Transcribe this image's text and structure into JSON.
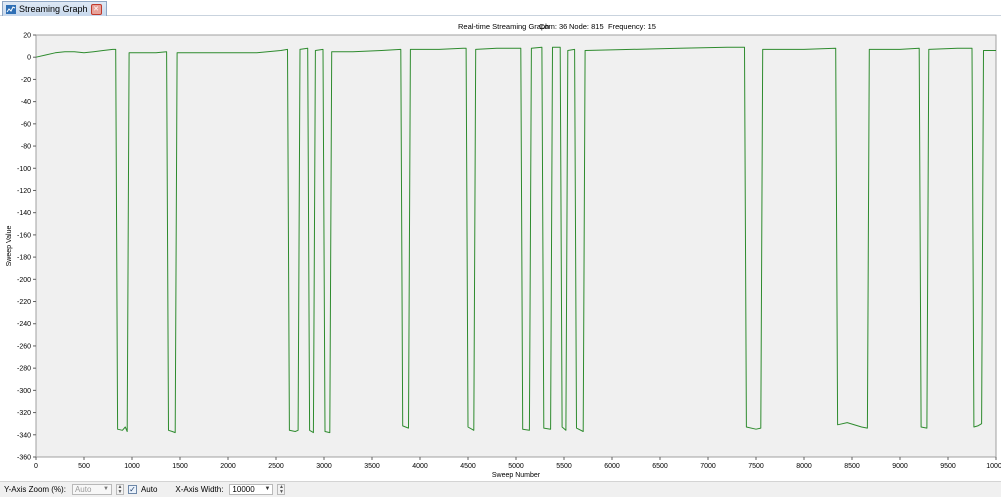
{
  "tab": {
    "title": "Streaming Graph",
    "icon": "line-graph-icon",
    "close_icon": "close-icon"
  },
  "header": {
    "title": "Real-time Streaming Graph",
    "com": "Com: 36",
    "node": "Node: 815",
    "frequency": "Frequency: 15"
  },
  "status": {
    "zoom_label": "Y-Axis Zoom (%):",
    "zoom_value": "Auto",
    "auto_label": "Auto",
    "auto_checked": true,
    "width_label": "X-Axis Width:",
    "width_value": "10000"
  },
  "colors": {
    "line": "#2e8b2e",
    "plot_bg": "#f0f0f0",
    "tab_accent": "#c7d8ec"
  },
  "chart_data": {
    "type": "line",
    "xlabel": "Sweep Number",
    "ylabel": "Sweep Value",
    "xlim": [
      0,
      10000
    ],
    "ylim": [
      -360,
      20
    ],
    "x_ticks": [
      0,
      500,
      1000,
      1500,
      2000,
      2500,
      3000,
      3500,
      4000,
      4500,
      5000,
      5500,
      6000,
      6500,
      7000,
      7500,
      8000,
      8500,
      9000,
      9500,
      10000
    ],
    "y_ticks": [
      20,
      0,
      -20,
      -40,
      -60,
      -80,
      -100,
      -120,
      -140,
      -160,
      -180,
      -200,
      -220,
      -240,
      -260,
      -280,
      -300,
      -320,
      -340,
      -360
    ],
    "grid": false,
    "legend": "none",
    "series": [
      {
        "points": [
          [
            0,
            0
          ],
          [
            100,
            2
          ],
          [
            200,
            4
          ],
          [
            300,
            5
          ],
          [
            400,
            5
          ],
          [
            500,
            4
          ],
          [
            600,
            5
          ],
          [
            700,
            6
          ],
          [
            800,
            7
          ],
          [
            830,
            7
          ],
          [
            850,
            -335
          ],
          [
            900,
            -336
          ],
          [
            930,
            -333
          ],
          [
            950,
            -337
          ],
          [
            970,
            4
          ],
          [
            1100,
            4
          ],
          [
            1250,
            4
          ],
          [
            1360,
            5
          ],
          [
            1380,
            -336
          ],
          [
            1420,
            -337
          ],
          [
            1450,
            -338
          ],
          [
            1470,
            4
          ],
          [
            1700,
            4
          ],
          [
            2000,
            4
          ],
          [
            2300,
            4
          ],
          [
            2550,
            6
          ],
          [
            2620,
            7
          ],
          [
            2640,
            -336
          ],
          [
            2700,
            -337
          ],
          [
            2730,
            -336
          ],
          [
            2750,
            7
          ],
          [
            2830,
            8
          ],
          [
            2850,
            -336
          ],
          [
            2890,
            -338
          ],
          [
            2910,
            6
          ],
          [
            2990,
            7
          ],
          [
            3010,
            -337
          ],
          [
            3060,
            -338
          ],
          [
            3080,
            5
          ],
          [
            3300,
            5
          ],
          [
            3600,
            6
          ],
          [
            3800,
            7
          ],
          [
            3820,
            -332
          ],
          [
            3880,
            -334
          ],
          [
            3900,
            7
          ],
          [
            4200,
            7
          ],
          [
            4450,
            8
          ],
          [
            4480,
            8
          ],
          [
            4500,
            -333
          ],
          [
            4560,
            -336
          ],
          [
            4580,
            7
          ],
          [
            4800,
            8
          ],
          [
            5050,
            8
          ],
          [
            5070,
            -335
          ],
          [
            5140,
            -336
          ],
          [
            5160,
            8
          ],
          [
            5270,
            9
          ],
          [
            5290,
            -334
          ],
          [
            5360,
            -335
          ],
          [
            5380,
            9
          ],
          [
            5460,
            9
          ],
          [
            5480,
            -333
          ],
          [
            5520,
            -336
          ],
          [
            5540,
            6
          ],
          [
            5610,
            7
          ],
          [
            5630,
            -334
          ],
          [
            5700,
            -337
          ],
          [
            5720,
            6
          ],
          [
            6200,
            7
          ],
          [
            6700,
            8
          ],
          [
            7200,
            9
          ],
          [
            7380,
            9
          ],
          [
            7400,
            -333
          ],
          [
            7500,
            -335
          ],
          [
            7550,
            -334
          ],
          [
            7570,
            7
          ],
          [
            8000,
            7
          ],
          [
            8330,
            8
          ],
          [
            8350,
            -331
          ],
          [
            8450,
            -329
          ],
          [
            8600,
            -333
          ],
          [
            8660,
            -334
          ],
          [
            8680,
            7
          ],
          [
            9000,
            7
          ],
          [
            9200,
            8
          ],
          [
            9220,
            -333
          ],
          [
            9280,
            -334
          ],
          [
            9300,
            7
          ],
          [
            9600,
            8
          ],
          [
            9750,
            8
          ],
          [
            9770,
            -333
          ],
          [
            9810,
            -332
          ],
          [
            9850,
            -330
          ],
          [
            9870,
            6
          ],
          [
            10000,
            6
          ]
        ]
      }
    ]
  }
}
